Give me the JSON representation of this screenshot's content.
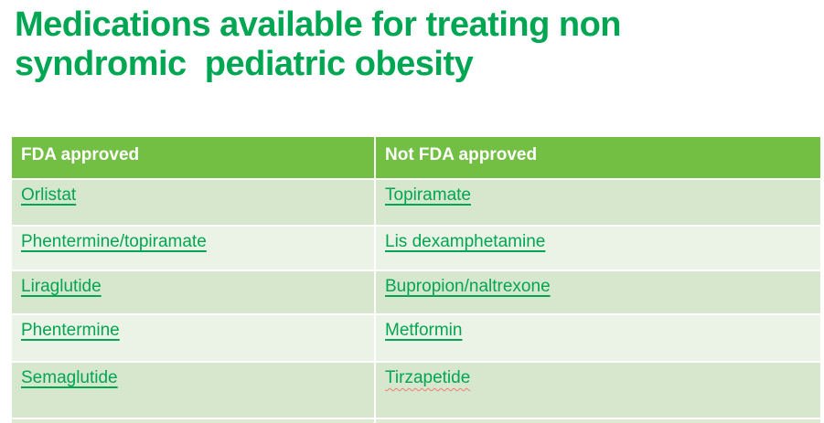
{
  "title": {
    "full": "Medications available for treating non syndromic  pediatric obesity",
    "line1": "Medications available for treating non",
    "line2": "syndromic  pediatric obesity"
  },
  "colors": {
    "title_green": "#00A651",
    "header_green": "#72BF44",
    "row_shade_dark": "#D6E7CE",
    "row_shade_light": "#EBF3E6",
    "link_green": "#00A651",
    "spellcheck_red": "#F07B72",
    "header_text": "#FFFFFF"
  },
  "table": {
    "headers": [
      {
        "label": "FDA approved"
      },
      {
        "label": "Not FDA approved"
      }
    ],
    "rows": [
      {
        "cells": [
          {
            "text": "Orlistat",
            "underline": true,
            "squiggle": false
          },
          {
            "text": "Topiramate",
            "underline": true,
            "squiggle": false
          }
        ]
      },
      {
        "cells": [
          {
            "text": "Phentermine/topiramate",
            "underline": true,
            "squiggle": false
          },
          {
            "text": "Lis dexamphetamine",
            "underline": true,
            "squiggle": false
          }
        ]
      },
      {
        "cells": [
          {
            "text": "Liraglutide",
            "underline": true,
            "squiggle": false
          },
          {
            "text": "Bupropion/naltrexone",
            "underline": true,
            "squiggle": false
          }
        ]
      },
      {
        "cells": [
          {
            "text": "Phentermine",
            "underline": true,
            "squiggle": false
          },
          {
            "text": "Metformin",
            "underline": true,
            "squiggle": false
          }
        ]
      },
      {
        "cells": [
          {
            "text": "Semaglutide",
            "underline": true,
            "squiggle": false
          },
          {
            "text": "Tirzapetide",
            "underline": false,
            "squiggle": true
          }
        ]
      }
    ]
  }
}
